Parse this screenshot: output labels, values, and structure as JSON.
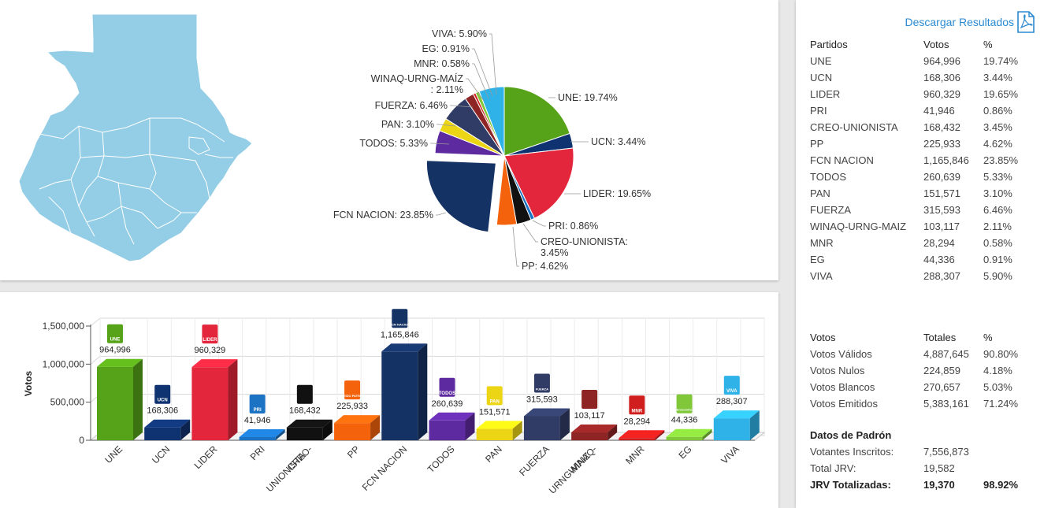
{
  "download_label": "Descargar Resultados",
  "colors": {
    "UNE": "#56a319",
    "UCN": "#0f3270",
    "LIDER": "#e4263c",
    "PRI": "#1c73c4",
    "CREO-UNIONISTA": "#111111",
    "PP": "#f5620c",
    "FCN NACION": "#143264",
    "TODOS": "#5e2aa0",
    "PAN": "#ecd515",
    "FUERZA": "#303c66",
    "WINAQ-URNG-MAIZ": "#8e2424",
    "MNR": "#d01d1d",
    "EG": "#80c83a",
    "VIVA": "#2fb2e8",
    "map": "#94cde6",
    "link": "#2a8ad0"
  },
  "results_table": {
    "headers": [
      "Partidos",
      "Votos",
      "%"
    ],
    "rows": [
      {
        "party": "UNE",
        "votes": "964,996",
        "pct": "19.74%"
      },
      {
        "party": "UCN",
        "votes": "168,306",
        "pct": "3.44%"
      },
      {
        "party": "LIDER",
        "votes": "960,329",
        "pct": "19.65%"
      },
      {
        "party": "PRI",
        "votes": "41,946",
        "pct": "0.86%"
      },
      {
        "party": "CREO-UNIONISTA",
        "votes": "168,432",
        "pct": "3.45%"
      },
      {
        "party": "PP",
        "votes": "225,933",
        "pct": "4.62%"
      },
      {
        "party": "FCN NACION",
        "votes": "1,165,846",
        "pct": "23.85%"
      },
      {
        "party": "TODOS",
        "votes": "260,639",
        "pct": "5.33%"
      },
      {
        "party": "PAN",
        "votes": "151,571",
        "pct": "3.10%"
      },
      {
        "party": "FUERZA",
        "votes": "315,593",
        "pct": "6.46%"
      },
      {
        "party": "WINAQ-URNG-MAIZ",
        "votes": "103,117",
        "pct": "2.11%"
      },
      {
        "party": "MNR",
        "votes": "28,294",
        "pct": "0.58%"
      },
      {
        "party": "EG",
        "votes": "44,336",
        "pct": "0.91%"
      },
      {
        "party": "VIVA",
        "votes": "288,307",
        "pct": "5.90%"
      }
    ]
  },
  "totals_table": {
    "headers": [
      "Votos",
      "Totales",
      "%"
    ],
    "rows": [
      {
        "label": "Votos Válidos",
        "value": "4,887,645",
        "pct": "90.80%"
      },
      {
        "label": "Votos Nulos",
        "value": "224,859",
        "pct": "4.18%"
      },
      {
        "label": "Votos Blancos",
        "value": "270,657",
        "pct": "5.03%"
      },
      {
        "label": "Votos Emitidos",
        "value": "5,383,161",
        "pct": "71.24%"
      }
    ]
  },
  "padron": {
    "title": "Datos de Padrón",
    "rows": [
      {
        "label": "Votantes Inscritos:",
        "value": "7,556,873",
        "pct": ""
      },
      {
        "label": "Total JRV:",
        "value": "19,582",
        "pct": ""
      },
      {
        "label": "JRV Totalizadas:",
        "value": "19,370",
        "pct": "98.92%"
      }
    ]
  },
  "chart_data": [
    {
      "type": "pie",
      "labels": [
        "UNE",
        "UCN",
        "LIDER",
        "PRI",
        "CREO-UNIONISTA",
        "PP",
        "FCN NACION",
        "TODOS",
        "PAN",
        "FUERZA",
        "WINAQ-URNG-MAÍZ",
        "MNR",
        "EG",
        "VIVA"
      ],
      "values": [
        19.74,
        3.44,
        19.65,
        0.86,
        3.45,
        4.62,
        23.85,
        5.33,
        3.1,
        6.46,
        2.11,
        0.58,
        0.91,
        5.9
      ],
      "data_labels": [
        "UNE: 19.74%",
        "UCN: 3.44%",
        "LIDER: 19.65%",
        "PRI: 0.86%",
        "CREO-UNIONISTA:|3.45%",
        "PP: 4.62%",
        "FCN NACION: 23.85%",
        "TODOS: 5.33%",
        "PAN: 3.10%",
        "FUERZA: 6.46%",
        "WINAQ-URNG-MAÍZ|: 2.11%",
        "MNR: 0.58%",
        "EG: 0.91%",
        "VIVA: 5.90%"
      ],
      "exploded": "FCN NACION"
    },
    {
      "type": "bar",
      "categories": [
        "UNE",
        "UCN",
        "LIDER",
        "PRI",
        "CREO-UNIONISTA",
        "PP",
        "FCN NACION",
        "TODOS",
        "PAN",
        "FUERZA",
        "WINAQ-URNG-MAIZ",
        "MNR",
        "EG",
        "VIVA"
      ],
      "category_labels": [
        "UNE",
        "UCN",
        "LIDER",
        "PRI",
        "CREO-|UNIONISTA",
        "PP",
        "FCN NACION",
        "TODOS",
        "PAN",
        "FUERZA",
        "WINAQ-|URNG-MAIZ",
        "MNR",
        "EG",
        "VIVA"
      ],
      "values": [
        964996,
        168306,
        960329,
        41946,
        168432,
        225933,
        1165846,
        260639,
        151571,
        315593,
        103117,
        28294,
        44336,
        288307
      ],
      "value_labels": [
        "964,996",
        "168,306",
        "960,329",
        "41,946",
        "168,432",
        "225,933",
        "1,165,846",
        "260,639",
        "151,571",
        "315,593",
        "103,117",
        "28,294",
        "44,336",
        "288,307"
      ],
      "logo_text": [
        "UNE",
        "UCN",
        "LIDER",
        "PRI",
        "",
        "PARTIDO PATRIOTA",
        "FCN NACION",
        "TODOS",
        "PAN",
        "FUERZA",
        "",
        "MNR",
        "Encuentro",
        "VIVA"
      ],
      "ylabel": "Votos",
      "ylim": [
        0,
        1500000
      ],
      "yticks": [
        0,
        500000,
        1000000,
        1500000
      ],
      "ytick_labels": [
        "0",
        "500,000",
        "1,000,000",
        "1,500,000"
      ],
      "grid": true,
      "style": "3d"
    }
  ]
}
